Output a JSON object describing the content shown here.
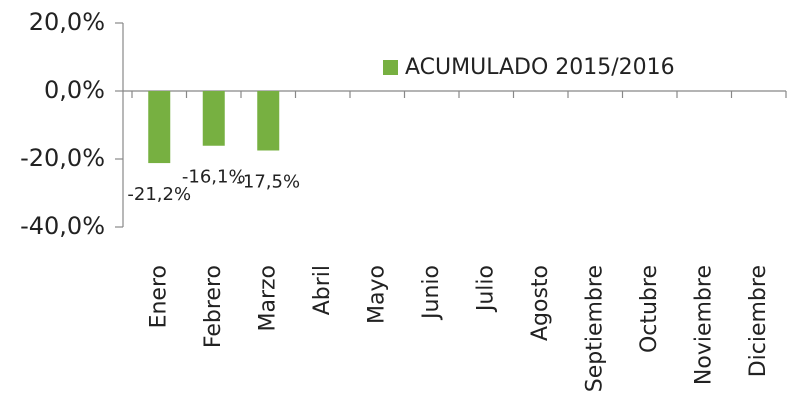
{
  "chart_data": {
    "type": "bar",
    "categories": [
      "Enero",
      "Febrero",
      "Marzo",
      "Abril",
      "Mayo",
      "Junio",
      "Julio",
      "Agosto",
      "Septiembre",
      "Octubre",
      "Noviembre",
      "Diciembre"
    ],
    "series": [
      {
        "name": "ACUMULADO 2015/2016",
        "color": "#77b041",
        "values": [
          -21.2,
          -16.1,
          -17.5,
          null,
          null,
          null,
          null,
          null,
          null,
          null,
          null,
          null
        ],
        "value_labels": [
          "-21,2%",
          "-16,1%",
          "-17,5%",
          null,
          null,
          null,
          null,
          null,
          null,
          null,
          null,
          null
        ]
      }
    ],
    "ylim": [
      -40,
      20
    ],
    "yticks": [
      {
        "value": 20,
        "label": "20,0%"
      },
      {
        "value": 0,
        "label": "0,0%"
      },
      {
        "value": -20,
        "label": "-20,0%"
      },
      {
        "value": -40,
        "label": "-40,0%"
      }
    ],
    "legend": "top-right"
  }
}
